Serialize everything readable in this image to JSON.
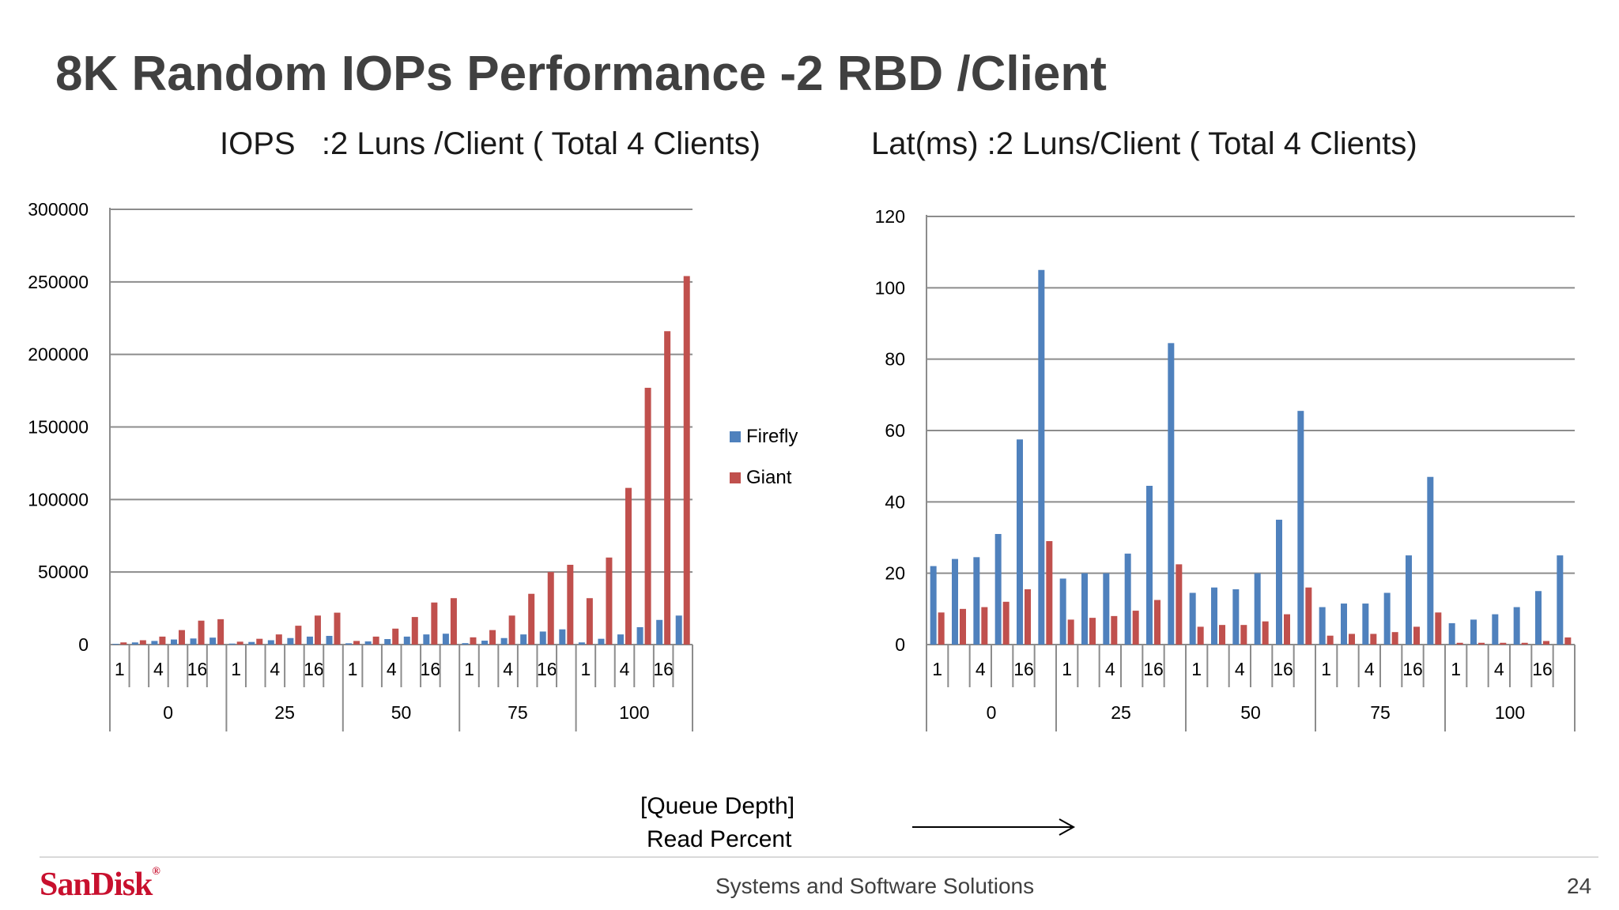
{
  "slide": {
    "title": "8K Random IOPs Performance -2 RBD /Client",
    "footer": "Systems and Software Solutions",
    "page_number": "24",
    "logo": "SanDisk",
    "logo_mark": "®",
    "xlabel_line1": "[Queue Depth]",
    "xlabel_line2": "Read Percent"
  },
  "chart_data": [
    {
      "type": "bar",
      "title": "IOPS   :2 Luns /Client ( Total 4 Clients)",
      "groups": [
        "0",
        "25",
        "50",
        "75",
        "100"
      ],
      "subcategory_labels": [
        "1",
        "",
        "4",
        "",
        "16",
        ""
      ],
      "ylim": [
        0,
        300000
      ],
      "yticks": [
        "0",
        "50000",
        "100000",
        "150000",
        "200000",
        "250000",
        "300000"
      ],
      "legend": "right",
      "grid": true,
      "series": [
        {
          "name": "Firefly",
          "color": "#4f81bd",
          "values": [
            500,
            1500,
            2500,
            3500,
            4200,
            4800,
            700,
            1800,
            3000,
            4500,
            5500,
            6000,
            900,
            2200,
            3800,
            5500,
            7000,
            7500,
            1000,
            2700,
            4500,
            7000,
            9000,
            10500,
            1500,
            4000,
            7000,
            12000,
            17000,
            20000
          ]
        },
        {
          "name": "Giant",
          "color": "#c0504d",
          "values": [
            1500,
            3000,
            5500,
            10000,
            16500,
            17500,
            2000,
            4000,
            7000,
            13000,
            20000,
            22000,
            2500,
            5500,
            11000,
            19000,
            29000,
            32000,
            5000,
            10000,
            20000,
            35000,
            50000,
            55000,
            32000,
            60000,
            108000,
            177000,
            216000,
            254000
          ]
        }
      ]
    },
    {
      "type": "bar",
      "title": "Lat(ms) :2 Luns/Client ( Total 4 Clients)",
      "groups": [
        "0",
        "25",
        "50",
        "75",
        "100"
      ],
      "subcategory_labels": [
        "1",
        "",
        "4",
        "",
        "16",
        ""
      ],
      "ylim": [
        0,
        120
      ],
      "yticks": [
        "0",
        "20",
        "40",
        "60",
        "80",
        "100",
        "120"
      ],
      "grid": true,
      "series": [
        {
          "name": "Firefly",
          "color": "#4f81bd",
          "values": [
            22,
            24,
            24.5,
            31,
            57.5,
            105,
            18.5,
            20,
            20,
            25.5,
            44.5,
            84.5,
            14.5,
            16,
            15.5,
            20,
            35,
            65.5,
            10.5,
            11.5,
            11.5,
            14.5,
            25,
            47,
            6,
            7,
            8.5,
            10.5,
            15,
            25
          ]
        },
        {
          "name": "Giant",
          "color": "#c0504d",
          "values": [
            9,
            10,
            10.5,
            12,
            15.5,
            29,
            7,
            7.5,
            8,
            9.5,
            12.5,
            22.5,
            5,
            5.5,
            5.5,
            6.5,
            8.5,
            16,
            2.5,
            3,
            3,
            3.5,
            5,
            9,
            0.5,
            0.5,
            0.5,
            0.5,
            1,
            2
          ]
        }
      ]
    }
  ]
}
